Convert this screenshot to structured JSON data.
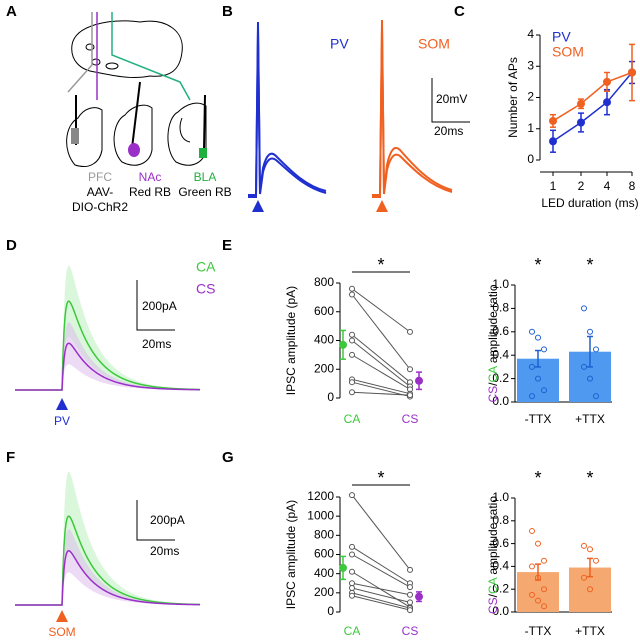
{
  "panel_letters": [
    "A",
    "B",
    "C",
    "D",
    "E",
    "F",
    "G"
  ],
  "panel_a": {
    "pfc": "PFC",
    "aav": "AAV-",
    "dio": "DIO-ChR2",
    "nac": "NAc",
    "red_rb": "Red RB",
    "bla": "BLA",
    "green_rb": "Green RB"
  },
  "panel_b": {
    "pv": "PV",
    "som": "SOM",
    "scale_v": "20mV",
    "scale_t": "20ms"
  },
  "panel_d": {
    "ca": "CA",
    "cs": "CS",
    "scale_i": "200pA",
    "scale_t": "20ms",
    "stim": "PV"
  },
  "panel_f": {
    "scale_i": "200pA",
    "scale_t": "20ms",
    "stim": "SOM"
  },
  "chart_data": [
    {
      "type": "line",
      "ylabel": "Number of APs",
      "xlabel": "LED duration (ms)",
      "categories": [
        "1",
        "2",
        "4",
        "8"
      ],
      "ylim": [
        0,
        4
      ],
      "yticks": [
        0,
        1,
        2,
        3,
        4
      ],
      "legend": "top-left",
      "series": [
        {
          "name": "PV",
          "color": "#1f2fd0",
          "values": [
            0.6,
            1.2,
            1.85,
            2.8
          ],
          "errors": [
            0.35,
            0.3,
            0.4,
            0.35
          ]
        },
        {
          "name": "SOM",
          "color": "#f06020",
          "values": [
            1.25,
            1.8,
            2.5,
            2.8
          ],
          "errors": [
            0.2,
            0.15,
            0.3,
            0.9
          ]
        }
      ]
    },
    {
      "type": "paired",
      "ylabel": "IPSC amplitude (pA)",
      "ylim": [
        0,
        800
      ],
      "yticks": [
        0,
        200,
        400,
        600,
        800
      ],
      "annotation": "*",
      "series": [
        {
          "name": "CA",
          "color": "#3cc83c",
          "values": [
            760,
            720,
            440,
            400,
            300,
            130,
            110,
            40
          ],
          "mean": 370,
          "error": 100
        },
        {
          "name": "CS",
          "color": "#9b30c8",
          "values": [
            460,
            200,
            110,
            80,
            60,
            30,
            10,
            20
          ],
          "mean": 120,
          "error": 60
        }
      ]
    },
    {
      "type": "bar",
      "ylabel_parts": [
        "CS",
        "/",
        "CA",
        " amplitude ratio"
      ],
      "ylabel_colors": [
        "#9b30c8",
        "#000000",
        "#3cc83c",
        "#000000"
      ],
      "categories": [
        "-TTX",
        "+TTX"
      ],
      "values": [
        0.37,
        0.43
      ],
      "errors": [
        0.07,
        0.13
      ],
      "color": "#4f9af0",
      "point_color": "#1f5fd0",
      "points": [
        [
          0.6,
          0.55,
          0.45,
          0.3,
          0.2,
          0.1,
          0.05
        ],
        [
          0.8,
          0.6,
          0.45,
          0.3,
          0.2,
          0.05
        ]
      ],
      "annotations": [
        "*",
        "*"
      ],
      "ylim": [
        0,
        1
      ],
      "yticks": [
        {
          "value": 0,
          "label": "0.0"
        },
        {
          "value": 0.2,
          "label": "0.2"
        },
        {
          "value": 0.4,
          "label": "0.4"
        },
        {
          "value": 0.6,
          "label": "0.6"
        },
        {
          "value": 0.8,
          "label": "0.8"
        },
        {
          "value": 1,
          "label": "1.0"
        }
      ]
    },
    {
      "type": "paired",
      "ylabel": "IPSC amplitude (pA)",
      "ylim": [
        0,
        1200
      ],
      "yticks": [
        0,
        200,
        400,
        600,
        800,
        1000,
        1200
      ],
      "annotation": "*",
      "series": [
        {
          "name": "CA",
          "color": "#3cc83c",
          "values": [
            1220,
            680,
            600,
            420,
            300,
            250,
            200,
            170
          ],
          "mean": 460,
          "error": 120
        },
        {
          "name": "CS",
          "color": "#9b30c8",
          "values": [
            440,
            300,
            260,
            50,
            180,
            100,
            40,
            20
          ],
          "mean": 160,
          "error": 50
        }
      ]
    },
    {
      "type": "bar",
      "ylabel_parts": [
        "CS",
        "/",
        "CA",
        " amplitude ratio"
      ],
      "ylabel_colors": [
        "#9b30c8",
        "#000000",
        "#3cc83c",
        "#000000"
      ],
      "categories": [
        "-TTX",
        "+TTX"
      ],
      "values": [
        0.35,
        0.39
      ],
      "errors": [
        0.07,
        0.08
      ],
      "color": "#f5a870",
      "point_color": "#f06020",
      "points": [
        [
          0.71,
          0.6,
          0.45,
          0.4,
          0.3,
          0.2,
          0.15,
          0.1,
          0.05
        ],
        [
          0.58,
          0.55,
          0.45,
          0.3,
          0.2
        ]
      ],
      "annotations": [
        "*",
        "*"
      ],
      "ylim": [
        0,
        1
      ],
      "yticks": [
        {
          "value": 0,
          "label": "0.0"
        },
        {
          "value": 0.2,
          "label": "0.2"
        },
        {
          "value": 0.4,
          "label": "0.4"
        },
        {
          "value": 0.6,
          "label": "0.6"
        },
        {
          "value": 0.8,
          "label": "0.8"
        },
        {
          "value": 1,
          "label": "1.0"
        }
      ]
    }
  ]
}
